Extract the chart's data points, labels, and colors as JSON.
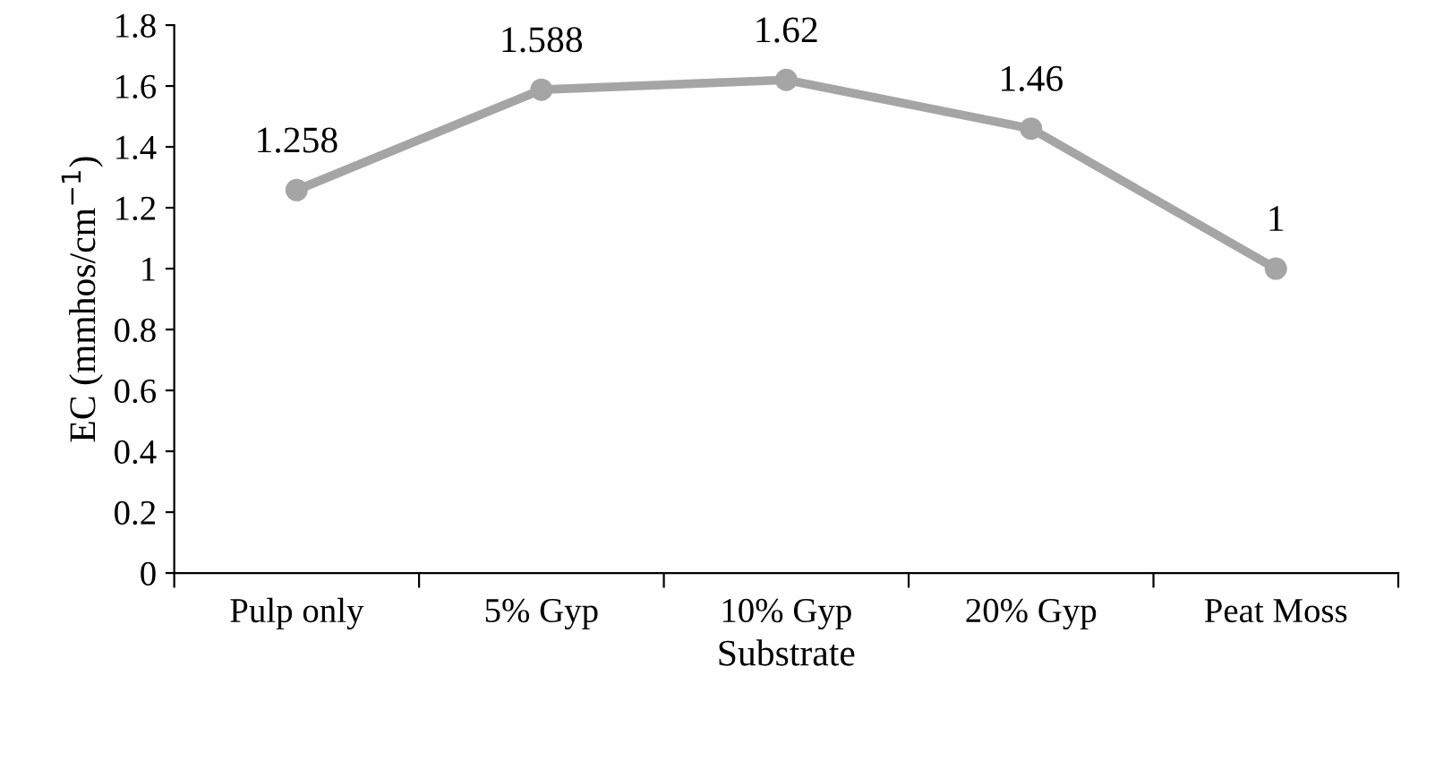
{
  "chart_data": {
    "type": "line",
    "xlabel": "Substrate",
    "ylabel": "EC (mmhos/cm$^{−1}$)",
    "categories": [
      "Pulp only",
      "5% Gyp",
      "10% Gyp",
      "20% Gyp",
      "Peat Moss"
    ],
    "series": [
      {
        "color": "#a5a5a5",
        "values": [
          1.258,
          1.588,
          1.62,
          1.46,
          1
        ]
      }
    ],
    "ylim": [
      0,
      1.8
    ],
    "yticks": [
      0,
      0.2,
      0.4,
      0.6,
      0.8,
      1,
      1.2,
      1.4,
      1.6,
      1.8
    ],
    "marker": "circle",
    "line_style": "solid",
    "data_labels": true,
    "grid": false,
    "legend": false
  }
}
